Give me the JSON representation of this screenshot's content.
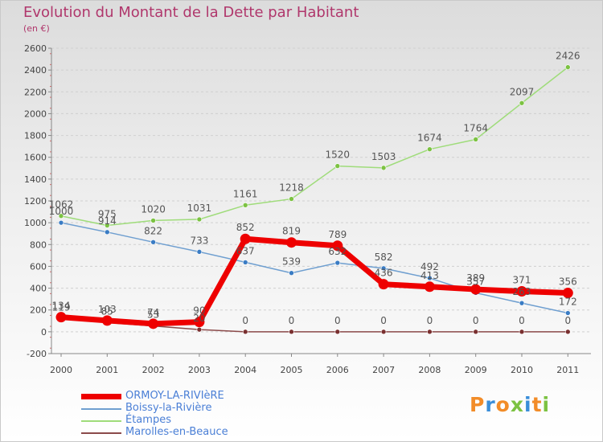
{
  "title": "Evolution du Montant de la Dette par Habitant",
  "unit_label": "(en €)",
  "logo": "Proxiti",
  "colors": {
    "title": "#b0376c",
    "axis_text": "#444444",
    "grid": "#d0d0d0",
    "legend_text": "#4a7fd6",
    "logo_orange": "#f28c28",
    "logo_blue": "#3a8ed9",
    "logo_green": "#7cc242"
  },
  "chart_data": {
    "type": "line",
    "x": [
      "2000",
      "2001",
      "2002",
      "2003",
      "2004",
      "2005",
      "2006",
      "2007",
      "2008",
      "2009",
      "2010",
      "2011"
    ],
    "ylim": [
      -200,
      2600
    ],
    "yticks": [
      "-200",
      "0",
      "200",
      "400",
      "600",
      "800",
      "1000",
      "1200",
      "1400",
      "1600",
      "1800",
      "2000",
      "2200",
      "2400",
      "2600"
    ],
    "grid": "horizontal dashed",
    "legend_position": "bottom-left",
    "series": [
      {
        "name": "ORMOY-LA-RIVIèRE",
        "color": "#ee0000",
        "marker": "#ee0000",
        "width": 7,
        "values": [
          134,
          103,
          74,
          90,
          852,
          819,
          789,
          436,
          413,
          389,
          371,
          356
        ],
        "labels": [
          "134",
          "103",
          "74",
          "90",
          "852",
          "819",
          "789",
          "436",
          "413",
          "389",
          "371",
          "356"
        ]
      },
      {
        "name": "Boissy-la-Rivière",
        "color": "#6f9fd0",
        "marker": "#3a7cc4",
        "width": 1.5,
        "values": [
          1000,
          914,
          822,
          733,
          637,
          539,
          632,
          582,
          492,
          357,
          263,
          172
        ],
        "labels": [
          "1000",
          "914",
          "822",
          "733",
          "637",
          "539",
          "632",
          "582",
          "492",
          "357",
          "263",
          "172"
        ]
      },
      {
        "name": "Étampes",
        "color": "#9fdc7a",
        "marker": "#7cc242",
        "width": 1.5,
        "values": [
          1062,
          975,
          1020,
          1031,
          1161,
          1218,
          1520,
          1503,
          1674,
          1764,
          2097,
          2426
        ],
        "labels": [
          "1062",
          "975",
          "1020",
          "1031",
          "1161",
          "1218",
          "1520",
          "1503",
          "1674",
          "1764",
          "2097",
          "2426"
        ]
      },
      {
        "name": "Marolles-en-Beauce",
        "color": "#8b4a4a",
        "marker": "#7a3030",
        "width": 1.5,
        "values": [
          119,
          85,
          53,
          20,
          0,
          0,
          0,
          0,
          0,
          0,
          0,
          0
        ],
        "labels": [
          "119",
          "85",
          "53",
          "20",
          "0",
          "0",
          "0",
          "0",
          "0",
          "0",
          "0",
          "0"
        ]
      }
    ]
  }
}
